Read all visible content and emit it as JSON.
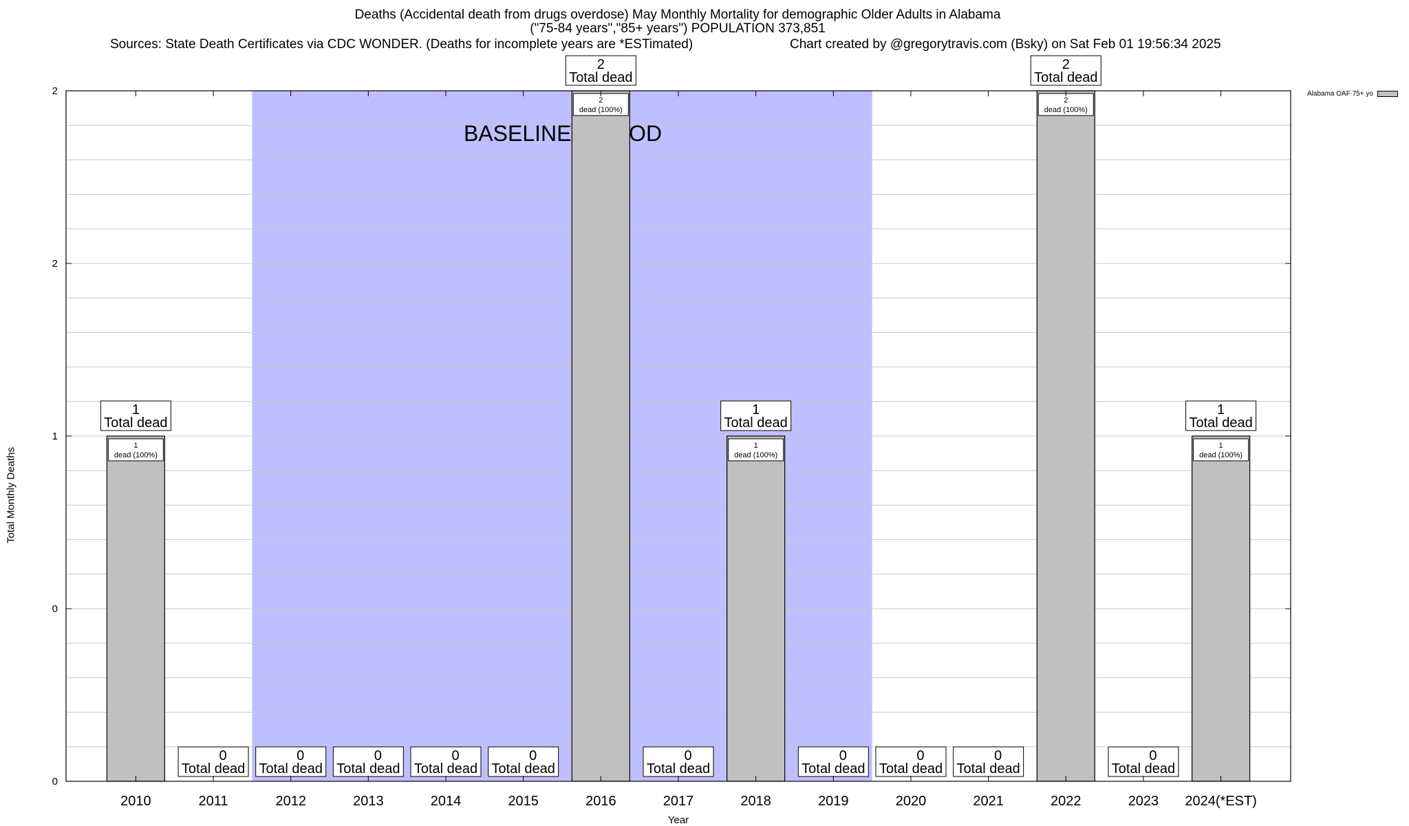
{
  "header": {
    "title_line1": "Deaths (Accidental death from drugs overdose) May Monthly Mortality for demographic Older Adults in Alabama",
    "title_line2": "(\"75-84 years\",\"85+ years\") POPULATION 373,851",
    "sources": "Sources: State Death Certificates via CDC WONDER. (Deaths for incomplete years are *ESTimated)",
    "credit": "Chart created by @gregorytravis.com (Bsky) on Sat Feb 01 19:56:34 2025"
  },
  "chart_data": {
    "type": "bar",
    "title": "Deaths (Accidental death from drugs overdose) May Monthly Mortality for demographic Older Adults in Alabama",
    "xlabel": "Year",
    "ylabel": "Total Monthly Deaths",
    "categories": [
      "2010",
      "2011",
      "2012",
      "2013",
      "2014",
      "2015",
      "2016",
      "2017",
      "2018",
      "2019",
      "2020",
      "2021",
      "2022",
      "2023",
      "2024(*EST)"
    ],
    "series": [
      {
        "name": "Alabama OAF 75+ yo",
        "values": [
          1,
          0,
          0,
          0,
          0,
          0,
          2,
          0,
          1,
          0,
          0,
          0,
          2,
          0,
          1
        ],
        "color": "#c0c0c0"
      }
    ],
    "ylim": [
      0,
      2
    ],
    "y_tick_labels": [
      "0",
      "0",
      "1",
      "2",
      "2"
    ],
    "total_label_suffix": "Total dead",
    "inner_label_suffix": "dead (100%)",
    "baseline": {
      "label": "BASELINE PERIOD",
      "start": "2012",
      "end": "2019",
      "color": "#bfbfff"
    },
    "grid": true,
    "legend_position": "top-right"
  }
}
